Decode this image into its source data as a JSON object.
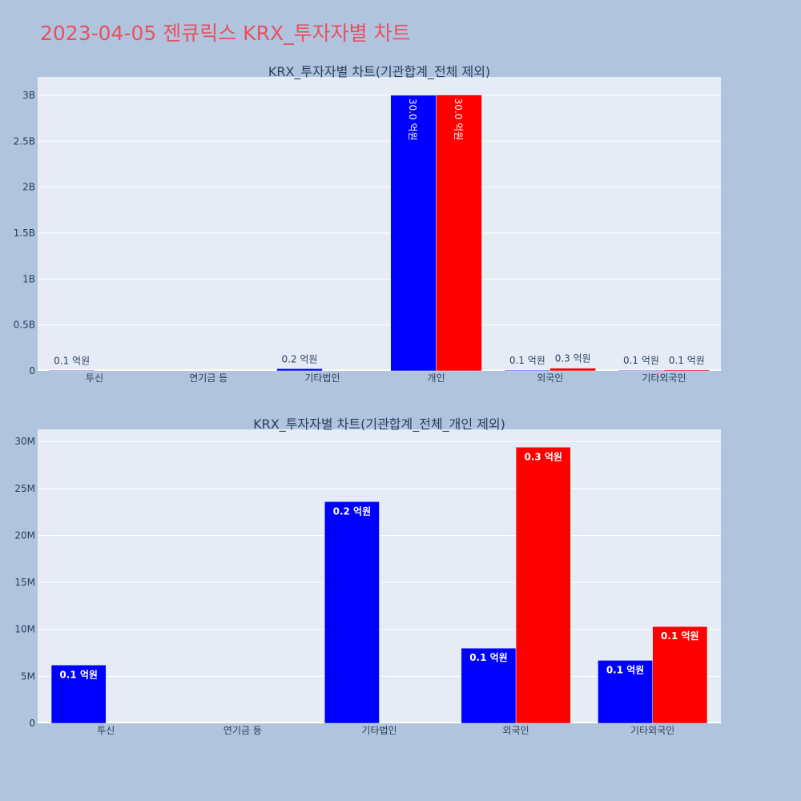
{
  "title": "2023-04-05 젠큐릭스 KRX_투자자별 차트",
  "colors": {
    "background": "#b0c4de",
    "plot_bg": "#e5ecf6",
    "buy": "#0000ff",
    "sell": "#ff0000",
    "title": "#e8515f"
  },
  "chart_data": [
    {
      "type": "bar",
      "title": "KRX_투자자별 차트(기관합계_전체 제외)",
      "categories": [
        "투신",
        "연기금 등",
        "기타법인",
        "개인",
        "외국인",
        "기타외국인"
      ],
      "yticks": [
        {
          "value": 0,
          "label": "0"
        },
        {
          "value": 500000000,
          "label": "0.5B"
        },
        {
          "value": 1000000000,
          "label": "1B"
        },
        {
          "value": 1500000000,
          "label": "1.5B"
        },
        {
          "value": 2000000000,
          "label": "2B"
        },
        {
          "value": 2500000000,
          "label": "2.5B"
        },
        {
          "value": 3000000000,
          "label": "3B"
        }
      ],
      "ylim": [
        0,
        3200000000
      ],
      "series": [
        {
          "color": "#0000ff",
          "values": [
            6200000,
            0,
            23600000,
            3000000000,
            8000000,
            6700000
          ],
          "labels": [
            "0.1 억원",
            "",
            "0.2 억원",
            "30.0 억원",
            "0.1 억원",
            "0.1 억원"
          ]
        },
        {
          "color": "#ff0000",
          "values": [
            0,
            0,
            0,
            3003000000,
            29400000,
            10300000
          ],
          "labels": [
            "",
            "",
            "",
            "30.0 억원",
            "0.3 억원",
            "0.1 억원"
          ]
        }
      ]
    },
    {
      "type": "bar",
      "title": "KRX_투자자별 차트(기관합계_전체_개인 제외)",
      "categories": [
        "투신",
        "연기금 등",
        "기타법인",
        "외국인",
        "기타외국인"
      ],
      "yticks": [
        {
          "value": 0,
          "label": "0"
        },
        {
          "value": 5000000,
          "label": "5M"
        },
        {
          "value": 10000000,
          "label": "10M"
        },
        {
          "value": 15000000,
          "label": "15M"
        },
        {
          "value": 20000000,
          "label": "20M"
        },
        {
          "value": 25000000,
          "label": "25M"
        },
        {
          "value": 30000000,
          "label": "30M"
        }
      ],
      "ylim": [
        0,
        31300000
      ],
      "series": [
        {
          "color": "#0000ff",
          "values": [
            6200000,
            0,
            23600000,
            8000000,
            6700000
          ],
          "labels": [
            "0.1 억원",
            "",
            "0.2 억원",
            "0.1 억원",
            "0.1 억원"
          ]
        },
        {
          "color": "#ff0000",
          "values": [
            0,
            0,
            0,
            29400000,
            10300000
          ],
          "labels": [
            "",
            "",
            "",
            "0.3 억원",
            "0.1 억원"
          ]
        }
      ]
    }
  ]
}
